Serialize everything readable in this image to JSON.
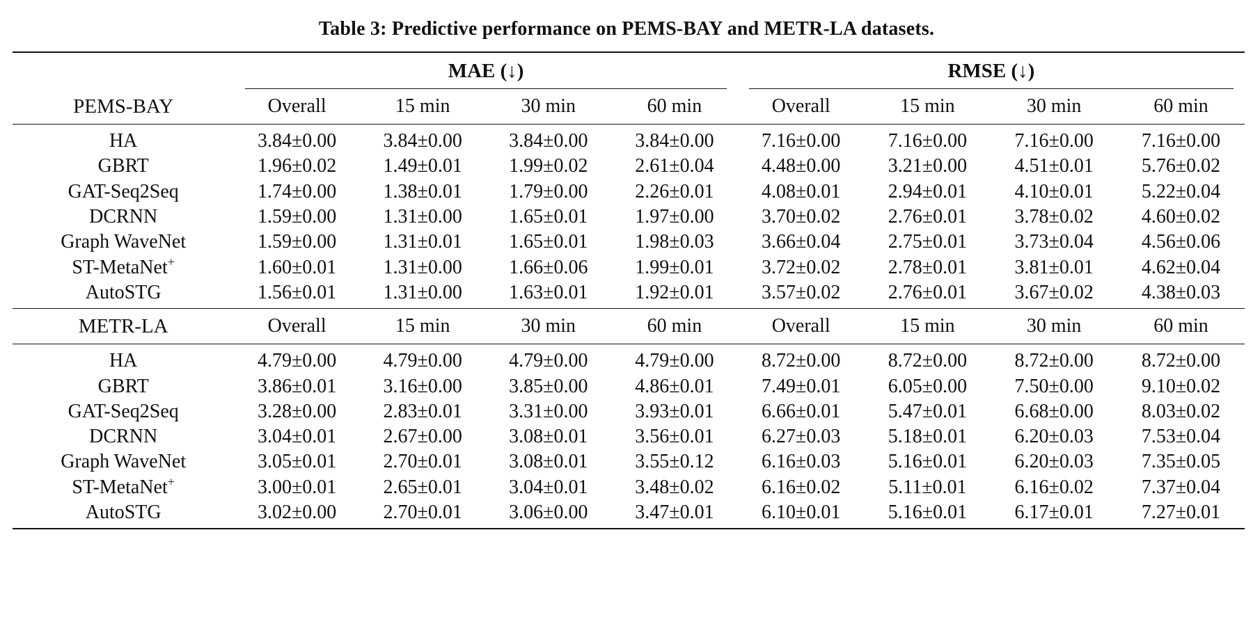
{
  "caption": "Table 3: Predictive performance on PEMS-BAY and METR-LA datasets.",
  "groups": {
    "mae": "MAE (↓)",
    "rmse": "RMSE (↓)"
  },
  "columns": [
    "Overall",
    "15 min",
    "30 min",
    "60 min",
    "Overall",
    "15 min",
    "30 min",
    "60 min"
  ],
  "datasets": [
    {
      "name": "PEMS-BAY",
      "rows": [
        {
          "method": "HA",
          "sup": "",
          "bold_method": false,
          "values": [
            "3.84±0.00",
            "3.84±0.00",
            "3.84±0.00",
            "3.84±0.00",
            "7.16±0.00",
            "7.16±0.00",
            "7.16±0.00",
            "7.16±0.00"
          ],
          "bold": [
            false,
            false,
            false,
            false,
            false,
            false,
            false,
            false
          ]
        },
        {
          "method": "GBRT",
          "sup": "",
          "bold_method": false,
          "values": [
            "1.96±0.02",
            "1.49±0.01",
            "1.99±0.02",
            "2.61±0.04",
            "4.48±0.00",
            "3.21±0.00",
            "4.51±0.01",
            "5.76±0.02"
          ],
          "bold": [
            false,
            false,
            false,
            false,
            false,
            false,
            false,
            false
          ]
        },
        {
          "method": "GAT-Seq2Seq",
          "sup": "",
          "bold_method": false,
          "values": [
            "1.74±0.00",
            "1.38±0.01",
            "1.79±0.00",
            "2.26±0.01",
            "4.08±0.01",
            "2.94±0.01",
            "4.10±0.01",
            "5.22±0.04"
          ],
          "bold": [
            false,
            false,
            false,
            false,
            false,
            false,
            false,
            false
          ]
        },
        {
          "method": "DCRNN",
          "sup": "",
          "bold_method": false,
          "values": [
            "1.59±0.00",
            "1.31±0.00",
            "1.65±0.01",
            "1.97±0.00",
            "3.70±0.02",
            "2.76±0.01",
            "3.78±0.02",
            "4.60±0.02"
          ],
          "bold": [
            false,
            false,
            false,
            false,
            false,
            false,
            false,
            false
          ]
        },
        {
          "method": "Graph WaveNet",
          "sup": "",
          "bold_method": false,
          "values": [
            "1.59±0.00",
            "1.31±0.01",
            "1.65±0.01",
            "1.98±0.03",
            "3.66±0.04",
            "2.75±0.01",
            "3.73±0.04",
            "4.56±0.06"
          ],
          "bold": [
            false,
            false,
            false,
            false,
            false,
            true,
            false,
            false
          ]
        },
        {
          "method": "ST-MetaNet",
          "sup": "+",
          "bold_method": false,
          "values": [
            "1.60±0.01",
            "1.31±0.00",
            "1.66±0.06",
            "1.99±0.01",
            "3.72±0.02",
            "2.78±0.01",
            "3.81±0.01",
            "4.62±0.04"
          ],
          "bold": [
            false,
            false,
            false,
            false,
            false,
            false,
            false,
            false
          ]
        },
        {
          "method": "AutoSTG",
          "sup": "",
          "bold_method": true,
          "values": [
            "1.56±0.01",
            "1.31±0.00",
            "1.63±0.01",
            "1.92±0.01",
            "3.57±0.02",
            "2.76±0.01",
            "3.67±0.02",
            "4.38±0.03"
          ],
          "bold": [
            true,
            true,
            true,
            true,
            true,
            false,
            true,
            true
          ]
        }
      ]
    },
    {
      "name": "METR-LA",
      "rows": [
        {
          "method": "HA",
          "sup": "",
          "bold_method": false,
          "values": [
            "4.79±0.00",
            "4.79±0.00",
            "4.79±0.00",
            "4.79±0.00",
            "8.72±0.00",
            "8.72±0.00",
            "8.72±0.00",
            "8.72±0.00"
          ],
          "bold": [
            false,
            false,
            false,
            false,
            false,
            false,
            false,
            false
          ]
        },
        {
          "method": "GBRT",
          "sup": "",
          "bold_method": false,
          "values": [
            "3.86±0.01",
            "3.16±0.00",
            "3.85±0.00",
            "4.86±0.01",
            "7.49±0.01",
            "6.05±0.00",
            "7.50±0.00",
            "9.10±0.02"
          ],
          "bold": [
            false,
            false,
            false,
            false,
            false,
            false,
            false,
            false
          ]
        },
        {
          "method": "GAT-Seq2Seq",
          "sup": "",
          "bold_method": false,
          "values": [
            "3.28±0.00",
            "2.83±0.01",
            "3.31±0.00",
            "3.93±0.01",
            "6.66±0.01",
            "5.47±0.01",
            "6.68±0.00",
            "8.03±0.02"
          ],
          "bold": [
            false,
            false,
            false,
            false,
            false,
            false,
            false,
            false
          ]
        },
        {
          "method": "DCRNN",
          "sup": "",
          "bold_method": false,
          "values": [
            "3.04±0.01",
            "2.67±0.00",
            "3.08±0.01",
            "3.56±0.01",
            "6.27±0.03",
            "5.18±0.01",
            "6.20±0.03",
            "7.53±0.04"
          ],
          "bold": [
            false,
            false,
            false,
            false,
            false,
            false,
            false,
            false
          ]
        },
        {
          "method": "Graph WaveNet",
          "sup": "",
          "bold_method": false,
          "values": [
            "3.05±0.01",
            "2.70±0.01",
            "3.08±0.01",
            "3.55±0.12",
            "6.16±0.03",
            "5.16±0.01",
            "6.20±0.03",
            "7.35±0.05"
          ],
          "bold": [
            false,
            false,
            false,
            false,
            false,
            false,
            false,
            false
          ]
        },
        {
          "method": "ST-MetaNet",
          "sup": "+",
          "bold_method": false,
          "values": [
            "3.00±0.01",
            "2.65±0.01",
            "3.04±0.01",
            "3.48±0.02",
            "6.16±0.02",
            "5.11±0.01",
            "6.16±0.02",
            "7.37±0.04"
          ],
          "bold": [
            true,
            true,
            true,
            false,
            false,
            true,
            true,
            false
          ]
        },
        {
          "method": "AutoSTG",
          "sup": "",
          "bold_method": true,
          "values": [
            "3.02±0.00",
            "2.70±0.01",
            "3.06±0.00",
            "3.47±0.01",
            "6.10±0.01",
            "5.16±0.01",
            "6.17±0.01",
            "7.27±0.01"
          ],
          "bold": [
            false,
            false,
            false,
            true,
            true,
            false,
            false,
            true
          ]
        }
      ]
    }
  ]
}
